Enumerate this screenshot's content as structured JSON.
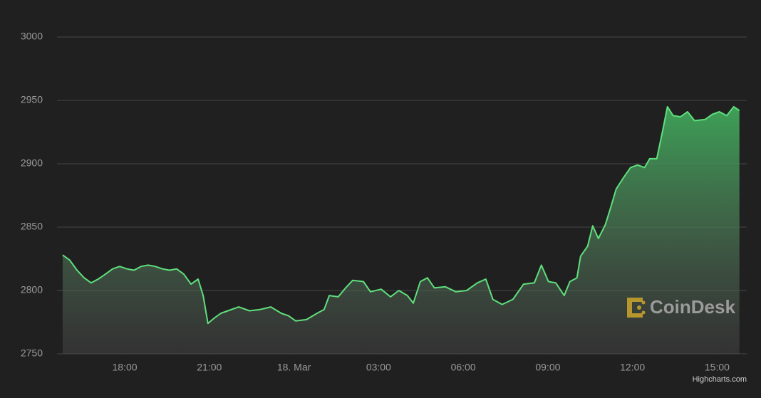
{
  "chart_data": {
    "type": "area",
    "x": [
      -8.2,
      -7.95,
      -7.69,
      -7.44,
      -7.19,
      -6.94,
      -6.68,
      -6.43,
      -6.18,
      -5.92,
      -5.67,
      -5.42,
      -5.17,
      -4.92,
      -4.66,
      -4.41,
      -4.16,
      -3.91,
      -3.65,
      -3.4,
      -3.22,
      -3.05,
      -2.84,
      -2.59,
      -2.34,
      -1.96,
      -1.58,
      -1.2,
      -0.82,
      -0.45,
      -0.19,
      0.06,
      0.44,
      0.82,
      1.07,
      1.25,
      1.57,
      1.83,
      2.08,
      2.46,
      2.71,
      3.09,
      3.42,
      3.72,
      4.02,
      4.23,
      4.48,
      4.73,
      4.98,
      5.36,
      5.74,
      6.12,
      6.5,
      6.8,
      7.05,
      7.38,
      7.76,
      8.14,
      8.52,
      8.77,
      9.02,
      9.28,
      9.58,
      9.78,
      10.03,
      10.16,
      10.41,
      10.59,
      10.79,
      11.04,
      11.22,
      11.42,
      11.68,
      11.93,
      12.18,
      12.43,
      12.61,
      12.86,
      13.06,
      13.24,
      13.44,
      13.7,
      13.95,
      14.2,
      14.58,
      14.83,
      15.08,
      15.34,
      15.59,
      15.79
    ],
    "series": [
      {
        "color": "#5fdf7c",
        "values": [
          2828,
          2824,
          2816,
          2810,
          2806,
          2809,
          2813,
          2817,
          2819,
          2817,
          2816,
          2819,
          2820,
          2819,
          2817,
          2816,
          2817,
          2813,
          2805,
          2809,
          2796,
          2774,
          2778,
          2782,
          2784,
          2787,
          2784,
          2785,
          2787,
          2782,
          2780,
          2776,
          2777,
          2782,
          2785,
          2796,
          2795,
          2802,
          2808,
          2807,
          2799,
          2801,
          2795,
          2800,
          2796,
          2790,
          2807,
          2810,
          2802,
          2803,
          2799,
          2800,
          2806,
          2809,
          2793,
          2789,
          2793,
          2805,
          2806,
          2820,
          2807,
          2806,
          2796,
          2807,
          2810,
          2827,
          2835,
          2851,
          2841,
          2852,
          2865,
          2880,
          2889,
          2897,
          2899,
          2897,
          2904,
          2904,
          2925,
          2945,
          2938,
          2937,
          2941,
          2934,
          2935,
          2939,
          2941,
          2938,
          2945,
          2942
        ]
      }
    ],
    "xlim": [
      -8.4,
      16.05
    ],
    "xticks": [
      {
        "value": -6,
        "label": "18:00"
      },
      {
        "value": -3,
        "label": "21:00"
      },
      {
        "value": 0,
        "label": "18. Mar"
      },
      {
        "value": 3,
        "label": "03:00"
      },
      {
        "value": 6,
        "label": "06:00"
      },
      {
        "value": 9,
        "label": "09:00"
      },
      {
        "value": 12,
        "label": "12:00"
      },
      {
        "value": 15,
        "label": "15:00"
      }
    ],
    "ylim": [
      2750,
      3000
    ],
    "yticks": [
      2750,
      2800,
      2850,
      2900,
      2950,
      3000
    ],
    "grid": true,
    "watermark": "CoinDesk",
    "credits": "Highcharts.com"
  }
}
